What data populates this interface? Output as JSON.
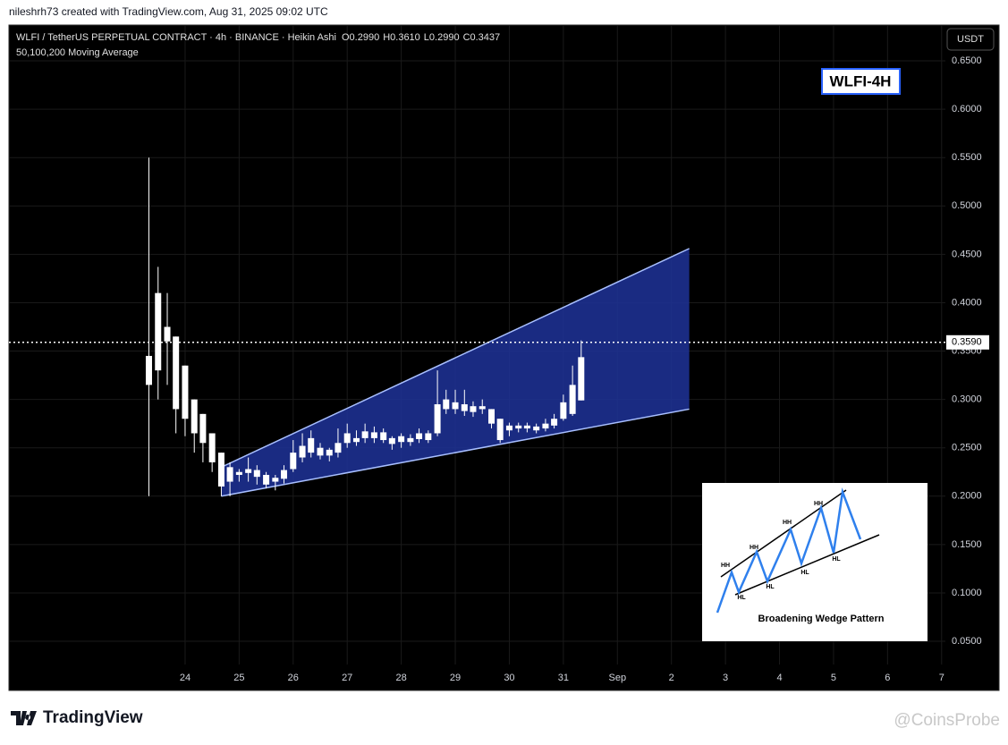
{
  "credit": "nileshrh73 created with TradingView.com, Aug 31, 2025 09:02 UTC",
  "brand": "TradingView",
  "watermark": "@CoinsProbe",
  "chart_data": {
    "type": "candlestick",
    "title": "WLFI / TetherUS PERPETUAL CONTRACT · 4h · BINANCE · Heikin Ashi",
    "ohlc_legend": [
      "O0.2990",
      "H0.3610",
      "L0.2990",
      "C0.3437"
    ],
    "subtitle": "50,100,200 Moving Average",
    "currency": "USDT",
    "badge": "WLFI-4H",
    "color": "#ffffff",
    "grid": true,
    "x": [
      23.33,
      23.5,
      23.67,
      23.83,
      24,
      24.17,
      24.33,
      24.5,
      24.67,
      24.83,
      25,
      25.17,
      25.33,
      25.5,
      25.67,
      25.83,
      26,
      26.17,
      26.33,
      26.5,
      26.67,
      26.83,
      27,
      27.17,
      27.33,
      27.5,
      27.67,
      27.83,
      28,
      28.17,
      28.33,
      28.5,
      28.67,
      28.83,
      29,
      29.17,
      29.33,
      29.5,
      29.67,
      29.83,
      30,
      30.17,
      30.33,
      30.5,
      30.67,
      30.83,
      31,
      31.17,
      31.33
    ],
    "open": [
      0.345,
      0.33,
      0.375,
      0.365,
      0.335,
      0.3,
      0.285,
      0.265,
      0.245,
      0.215,
      0.222,
      0.224,
      0.227,
      0.222,
      0.215,
      0.218,
      0.228,
      0.24,
      0.245,
      0.25,
      0.242,
      0.245,
      0.255,
      0.26,
      0.26,
      0.266,
      0.266,
      0.26,
      0.256,
      0.256,
      0.259,
      0.265,
      0.265,
      0.29,
      0.29,
      0.295,
      0.287,
      0.293,
      0.29,
      0.28,
      0.268,
      0.27,
      0.27,
      0.272,
      0.27,
      0.273,
      0.28,
      0.285,
      0.299
    ],
    "high": [
      0.55,
      0.437,
      0.41,
      0.365,
      0.335,
      0.3,
      0.285,
      0.265,
      0.245,
      0.235,
      0.228,
      0.24,
      0.232,
      0.225,
      0.222,
      0.232,
      0.258,
      0.265,
      0.268,
      0.255,
      0.25,
      0.27,
      0.275,
      0.268,
      0.275,
      0.272,
      0.27,
      0.262,
      0.265,
      0.264,
      0.27,
      0.268,
      0.33,
      0.31,
      0.31,
      0.31,
      0.298,
      0.3,
      0.29,
      0.28,
      0.276,
      0.276,
      0.276,
      0.275,
      0.28,
      0.285,
      0.305,
      0.335,
      0.361
    ],
    "low": [
      0.2,
      0.3,
      0.315,
      0.265,
      0.262,
      0.245,
      0.235,
      0.225,
      0.2,
      0.2,
      0.215,
      0.215,
      0.212,
      0.208,
      0.206,
      0.213,
      0.225,
      0.235,
      0.24,
      0.238,
      0.236,
      0.24,
      0.25,
      0.252,
      0.255,
      0.255,
      0.255,
      0.248,
      0.25,
      0.252,
      0.255,
      0.255,
      0.262,
      0.285,
      0.285,
      0.283,
      0.282,
      0.285,
      0.27,
      0.255,
      0.262,
      0.266,
      0.266,
      0.265,
      0.267,
      0.27,
      0.278,
      0.283,
      0.299
    ],
    "close": [
      0.315,
      0.41,
      0.36,
      0.29,
      0.28,
      0.265,
      0.255,
      0.235,
      0.21,
      0.23,
      0.225,
      0.228,
      0.22,
      0.212,
      0.219,
      0.227,
      0.245,
      0.252,
      0.26,
      0.242,
      0.248,
      0.255,
      0.265,
      0.256,
      0.267,
      0.26,
      0.258,
      0.254,
      0.262,
      0.26,
      0.265,
      0.258,
      0.295,
      0.3,
      0.297,
      0.288,
      0.293,
      0.29,
      0.275,
      0.258,
      0.273,
      0.273,
      0.273,
      0.268,
      0.275,
      0.28,
      0.297,
      0.315,
      0.3437
    ],
    "current_price": {
      "value": 0.359,
      "label": "0.3590"
    },
    "wedge": {
      "color": "#1f3399",
      "upper": [
        [
          24.67,
          0.23
        ],
        [
          33.33,
          0.456
        ]
      ],
      "lower": [
        [
          24.67,
          0.2
        ],
        [
          33.33,
          0.29
        ]
      ]
    },
    "xlim": [
      20.74,
      38.07
    ],
    "xticks": [
      24,
      25,
      26,
      27,
      28,
      29,
      30,
      31,
      {
        "value": 32,
        "label": "Sep"
      },
      {
        "value": 33,
        "label": "2"
      },
      {
        "value": 34,
        "label": "3"
      },
      {
        "value": 35,
        "label": "4"
      },
      {
        "value": 36,
        "label": "5"
      },
      {
        "value": 37,
        "label": "6"
      },
      {
        "value": 38,
        "label": "7"
      }
    ],
    "ylim": [
      0.026,
      0.687
    ],
    "yticks": [
      {
        "value": 0.05,
        "label": "0.0500"
      },
      {
        "value": 0.1,
        "label": "0.1000"
      },
      {
        "value": 0.15,
        "label": "0.1500"
      },
      {
        "value": 0.2,
        "label": "0.2000"
      },
      {
        "value": 0.25,
        "label": "0.2500"
      },
      {
        "value": 0.3,
        "label": "0.3000"
      },
      {
        "value": 0.35,
        "label": "0.3500"
      },
      {
        "value": 0.4,
        "label": "0.4000"
      },
      {
        "value": 0.45,
        "label": "0.4500"
      },
      {
        "value": 0.5,
        "label": "0.5000"
      },
      {
        "value": 0.55,
        "label": "0.5500"
      },
      {
        "value": 0.6,
        "label": "0.6000"
      },
      {
        "value": 0.65,
        "label": "0.6500"
      }
    ]
  },
  "inset": {
    "title": "Broadening Wedge Pattern",
    "labels": [
      "HH",
      "HH",
      "HH",
      "HH",
      "HL",
      "HL",
      "HL",
      "HL"
    ]
  }
}
